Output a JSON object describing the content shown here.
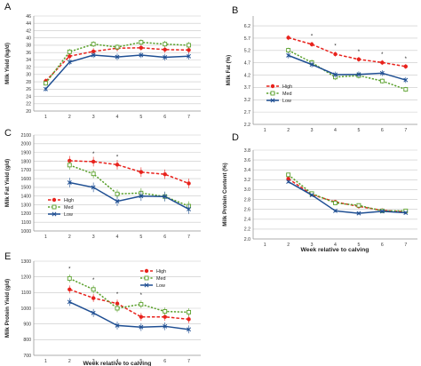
{
  "colors": {
    "High": "#e8221c",
    "Med": "#5aa02c",
    "Low": "#1f4f93"
  },
  "chart_data": [
    {
      "id": "A",
      "type": "line",
      "panel_label": "A",
      "ylabel": "Milk Yield (kg/d)",
      "xlabel": "",
      "ylim": [
        20,
        46
      ],
      "yticks": [
        "20",
        "22",
        "24",
        "26",
        "28",
        "30",
        "32",
        "34",
        "36",
        "38",
        "40",
        "42",
        "44",
        "46"
      ],
      "x": [
        "1",
        "2",
        "3",
        "4",
        "5",
        "6",
        "7"
      ],
      "series": [
        {
          "name": "High",
          "x": [
            1,
            2,
            3,
            4,
            5,
            6,
            7
          ],
          "values": [
            28.2,
            35.0,
            36.3,
            37.2,
            37.3,
            36.8,
            36.7
          ],
          "err": [
            0.7,
            0.8,
            0.9,
            0.9,
            0.8,
            0.9,
            0.9
          ]
        },
        {
          "name": "Med",
          "x": [
            1,
            2,
            3,
            4,
            5,
            6,
            7
          ],
          "values": [
            27.6,
            36.2,
            38.3,
            37.5,
            38.8,
            38.3,
            38.0
          ],
          "err": [
            0.6,
            0.8,
            0.8,
            0.8,
            0.8,
            0.9,
            0.9
          ]
        },
        {
          "name": "Low",
          "x": [
            1,
            2,
            3,
            4,
            5,
            6,
            7
          ],
          "values": [
            26.0,
            33.4,
            35.3,
            34.8,
            35.3,
            34.7,
            35.0
          ],
          "err": [
            0.6,
            0.8,
            0.8,
            0.9,
            0.8,
            0.9,
            0.9
          ]
        }
      ],
      "stars": [],
      "legend": null
    },
    {
      "id": "B",
      "type": "line",
      "panel_label": "B",
      "ylabel": "Milk Fat (%)",
      "xlabel": "",
      "ylim": [
        2.2,
        6.6
      ],
      "yticks": [
        "2.2",
        "2.7",
        "3.2",
        "3.7",
        "4.2",
        "4.7",
        "5.2",
        "5.7",
        "6.2"
      ],
      "x": [
        "1",
        "2",
        "3",
        "4",
        "5",
        "6",
        "7"
      ],
      "series": [
        {
          "name": "High",
          "x": [
            2,
            3,
            4,
            5,
            6,
            7
          ],
          "values": [
            5.72,
            5.45,
            5.05,
            4.84,
            4.71,
            4.55
          ],
          "err": [
            0.1,
            0.1,
            0.1,
            0.1,
            0.1,
            0.1
          ]
        },
        {
          "name": "Med",
          "x": [
            2,
            3,
            4,
            5,
            6,
            7
          ],
          "values": [
            5.21,
            4.71,
            4.12,
            4.18,
            3.96,
            3.62
          ],
          "err": [
            0.1,
            0.12,
            0.12,
            0.12,
            0.1,
            0.1
          ]
        },
        {
          "name": "Low",
          "x": [
            2,
            3,
            4,
            5,
            6,
            7
          ],
          "values": [
            5.0,
            4.63,
            4.22,
            4.23,
            4.28,
            4.0
          ],
          "err": [
            0.12,
            0.12,
            0.12,
            0.12,
            0.12,
            0.12
          ]
        }
      ],
      "stars": [
        {
          "x": 3,
          "y": 5.72,
          "text": "*"
        },
        {
          "x": 4,
          "y": 5.32,
          "text": "*"
        },
        {
          "x": 5,
          "y": 5.08,
          "text": "*"
        },
        {
          "x": 6,
          "y": 4.97,
          "text": "*"
        },
        {
          "x": 7,
          "y": 4.8,
          "text": "*"
        }
      ],
      "legend": {
        "items": [
          "High",
          "Med",
          "Low"
        ]
      }
    },
    {
      "id": "C",
      "type": "line",
      "panel_label": "C",
      "ylabel": "Milk Fat Yield (g/d)",
      "xlabel": "",
      "ylim": [
        1000,
        2100
      ],
      "yticks": [
        "1000",
        "1100",
        "1200",
        "1300",
        "1400",
        "1500",
        "1600",
        "1700",
        "1800",
        "1900",
        "2000",
        "2100"
      ],
      "x": [
        "1",
        "2",
        "3",
        "4",
        "5",
        "6",
        "7"
      ],
      "series": [
        {
          "name": "High",
          "x": [
            2,
            3,
            4,
            5,
            6,
            7
          ],
          "values": [
            1805,
            1795,
            1760,
            1675,
            1650,
            1545
          ],
          "err": [
            55,
            55,
            55,
            55,
            55,
            55
          ]
        },
        {
          "name": "Med",
          "x": [
            2,
            3,
            4,
            5,
            6,
            7
          ],
          "values": [
            1755,
            1655,
            1425,
            1435,
            1395,
            1285
          ],
          "err": [
            50,
            50,
            50,
            55,
            55,
            55
          ]
        },
        {
          "name": "Low",
          "x": [
            2,
            3,
            4,
            5,
            6,
            7
          ],
          "values": [
            1555,
            1500,
            1340,
            1400,
            1395,
            1250
          ],
          "err": [
            55,
            55,
            55,
            55,
            55,
            55
          ]
        }
      ],
      "stars": [
        {
          "x": 3,
          "y": 1865,
          "text": "*"
        },
        {
          "x": 4,
          "y": 1830,
          "text": "*"
        }
      ],
      "legend": {
        "items": [
          "High",
          "Med",
          "Low"
        ]
      }
    },
    {
      "id": "D",
      "type": "line",
      "panel_label": "D",
      "ylabel": "Milk Protein Content (%)",
      "xlabel": "Week relative to calving",
      "ylim": [
        2.0,
        3.8
      ],
      "yticks": [
        "2.0",
        "2.2",
        "2.4",
        "2.6",
        "2.8",
        "3.0",
        "3.2",
        "3.4",
        "3.6",
        "3.8"
      ],
      "x": [
        "1",
        "2",
        "3",
        "4",
        "5",
        "6",
        "7"
      ],
      "series": [
        {
          "name": "High",
          "x": [
            2,
            3,
            4,
            5,
            6,
            7
          ],
          "values": [
            3.22,
            2.9,
            2.75,
            2.66,
            2.58,
            2.55
          ],
          "err": [
            0.03,
            0.03,
            0.03,
            0.03,
            0.03,
            0.03
          ]
        },
        {
          "name": "Med",
          "x": [
            2,
            3,
            4,
            5,
            6,
            7
          ],
          "values": [
            3.3,
            2.92,
            2.73,
            2.68,
            2.57,
            2.57
          ],
          "err": [
            0.03,
            0.03,
            0.03,
            0.03,
            0.03,
            0.03
          ]
        },
        {
          "name": "Low",
          "x": [
            2,
            3,
            4,
            5,
            6,
            7
          ],
          "values": [
            3.16,
            2.89,
            2.57,
            2.52,
            2.56,
            2.53
          ],
          "err": [
            0.03,
            0.03,
            0.03,
            0.03,
            0.03,
            0.03
          ]
        }
      ],
      "stars": [],
      "legend": null
    },
    {
      "id": "E",
      "type": "line",
      "panel_label": "E",
      "ylabel": "Milk Protein Yield (g/d)",
      "xlabel": "Week relative to calving",
      "ylim": [
        700,
        1300
      ],
      "yticks": [
        "700",
        "800",
        "900",
        "1000",
        "1100",
        "1200",
        "1300"
      ],
      "x": [
        "1",
        "2",
        "3",
        "4",
        "5",
        "6",
        "7"
      ],
      "series": [
        {
          "name": "High",
          "x": [
            2,
            3,
            4,
            5,
            6,
            7
          ],
          "values": [
            1120,
            1065,
            1030,
            945,
            945,
            930
          ],
          "err": [
            25,
            25,
            25,
            25,
            25,
            25
          ]
        },
        {
          "name": "Med",
          "x": [
            2,
            3,
            4,
            5,
            6,
            7
          ],
          "values": [
            1190,
            1120,
            1000,
            1025,
            980,
            975
          ],
          "err": [
            25,
            25,
            25,
            25,
            25,
            25
          ]
        },
        {
          "name": "Low",
          "x": [
            2,
            3,
            4,
            5,
            6,
            7
          ],
          "values": [
            1040,
            970,
            890,
            880,
            885,
            865
          ],
          "err": [
            25,
            25,
            25,
            25,
            25,
            25
          ]
        }
      ],
      "stars": [
        {
          "x": 2,
          "y": 1240,
          "text": "*"
        },
        {
          "x": 3,
          "y": 1170,
          "text": "*"
        },
        {
          "x": 4,
          "y": 1080,
          "text": "*"
        },
        {
          "x": 5,
          "y": 1075,
          "text": "*"
        }
      ],
      "legend": {
        "items": [
          "High",
          "Med",
          "Low"
        ]
      }
    }
  ]
}
